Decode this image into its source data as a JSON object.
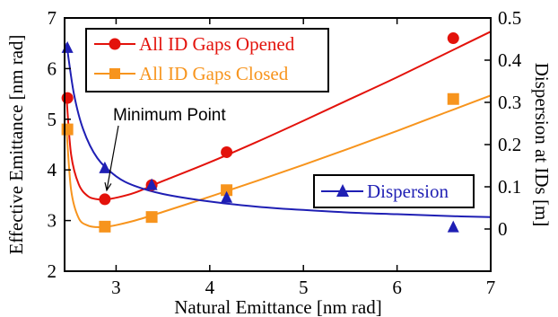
{
  "chart_data": {
    "type": "line",
    "xlabel": "Natural Emittance [nm rad]",
    "ylabel_left": "Effective Emittance [nm rad]",
    "ylabel_right": "Dispersion at IDs [m]",
    "xlim": [
      2.45,
      7.0
    ],
    "ylim_left": [
      2.0,
      7.0
    ],
    "ylim_right": [
      -0.1,
      0.5
    ],
    "x_ticks": [
      3,
      4,
      5,
      6,
      7
    ],
    "y_left_ticks": [
      2,
      3,
      4,
      5,
      6,
      7
    ],
    "y_right_ticks": [
      0,
      0.1,
      0.2,
      0.3,
      0.4,
      0.5
    ],
    "x_tick_labels": [
      "3",
      "4",
      "5",
      "6",
      "7"
    ],
    "y_left_tick_labels": [
      "2",
      "3",
      "4",
      "5",
      "6",
      "7"
    ],
    "y_right_tick_labels": [
      "0",
      "0.1",
      "0.2",
      "0.3",
      "0.4",
      "0.5"
    ],
    "grid": false,
    "series": [
      {
        "name": "All ID Gaps Opened",
        "axis": "left",
        "color": "#e3120b",
        "marker": "circle",
        "points": {
          "x": [
            2.48,
            2.88,
            3.38,
            4.18,
            6.6
          ],
          "y": [
            5.42,
            3.42,
            3.7,
            4.35,
            6.6
          ]
        },
        "curve": {
          "x": [
            2.47,
            2.52,
            2.6,
            2.7,
            2.8,
            2.9,
            3.0,
            3.2,
            3.5,
            4.0,
            4.5,
            5.0,
            5.5,
            6.0,
            6.5,
            7.0
          ],
          "y": [
            5.45,
            4.3,
            3.72,
            3.48,
            3.42,
            3.42,
            3.45,
            3.55,
            3.78,
            4.15,
            4.55,
            4.97,
            5.4,
            5.83,
            6.28,
            6.73
          ]
        }
      },
      {
        "name": "All ID Gaps Closed",
        "axis": "left",
        "color": "#f7941d",
        "marker": "square",
        "points": {
          "x": [
            2.48,
            2.88,
            3.38,
            4.18,
            6.6
          ],
          "y": [
            4.8,
            2.88,
            3.07,
            3.6,
            5.4
          ]
        },
        "curve": {
          "x": [
            2.47,
            2.52,
            2.6,
            2.7,
            2.8,
            2.9,
            3.0,
            3.2,
            3.5,
            4.0,
            4.5,
            5.0,
            5.5,
            6.0,
            6.5,
            7.0
          ],
          "y": [
            4.82,
            3.6,
            3.05,
            2.9,
            2.87,
            2.88,
            2.91,
            3.0,
            3.17,
            3.47,
            3.78,
            4.1,
            4.43,
            4.77,
            5.12,
            5.47
          ]
        }
      },
      {
        "name": "Dispersion",
        "axis": "right",
        "color": "#1f1fb4",
        "marker": "triangle",
        "points": {
          "x": [
            2.48,
            2.88,
            3.38,
            4.18,
            6.6
          ],
          "y": [
            0.43,
            0.145,
            0.105,
            0.075,
            0.005
          ]
        },
        "curve": {
          "x": [
            2.47,
            2.55,
            2.65,
            2.8,
            3.0,
            3.2,
            3.5,
            4.0,
            4.5,
            5.0,
            5.5,
            6.0,
            6.5,
            7.0
          ],
          "y": [
            0.44,
            0.32,
            0.235,
            0.168,
            0.125,
            0.102,
            0.083,
            0.065,
            0.053,
            0.045,
            0.039,
            0.035,
            0.031,
            0.028
          ]
        }
      }
    ],
    "annotations": [
      {
        "text": "Minimum Point",
        "target_x": 2.9,
        "target_y": 3.42
      }
    ],
    "legends": [
      {
        "entries": [
          "All ID Gaps Opened",
          "All ID Gaps Closed"
        ],
        "placement": "upper-left"
      },
      {
        "entries": [
          "Dispersion"
        ],
        "placement": "right-middle"
      }
    ]
  }
}
